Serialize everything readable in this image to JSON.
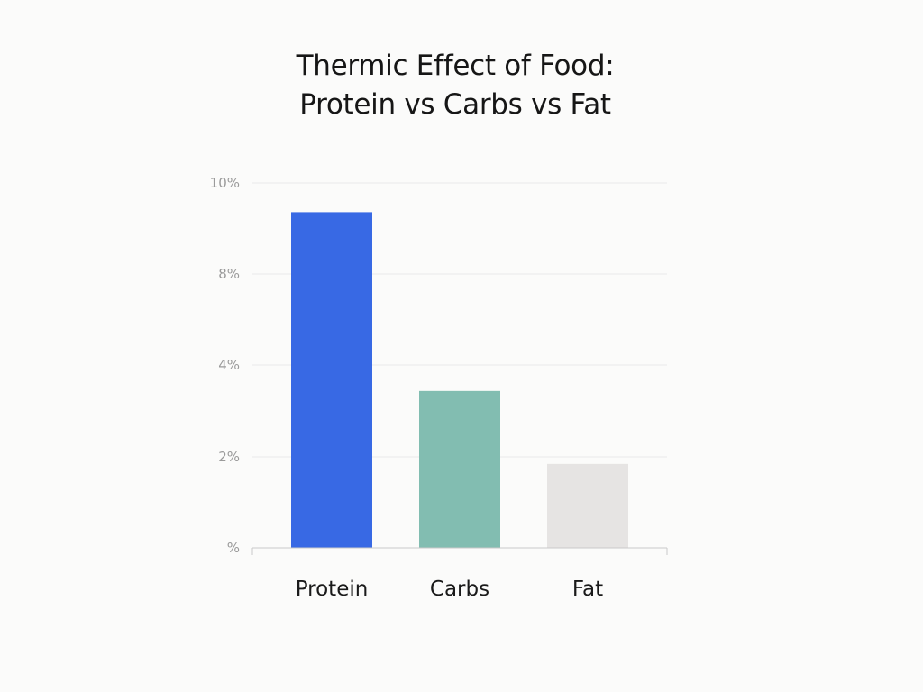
{
  "chart_data": {
    "type": "bar",
    "title_lines": [
      "Thermic Effect of Food:",
      "Protein vs Carbs vs Fat"
    ],
    "categories": [
      "Protein",
      "Carbs",
      "Fat"
    ],
    "values": [
      9.2,
      4.3,
      2.3
    ],
    "y_tick_labels": [
      "%",
      "2%",
      "4%",
      "8%",
      "10%"
    ],
    "ylim": [
      0,
      10
    ],
    "grid": true,
    "legend": "none",
    "colors": [
      "#3869e4",
      "#82bdb1",
      "#e6e4e3"
    ],
    "colors_meaning": "one color per bar: Protein blue, Carbs teal, Fat light gray"
  }
}
